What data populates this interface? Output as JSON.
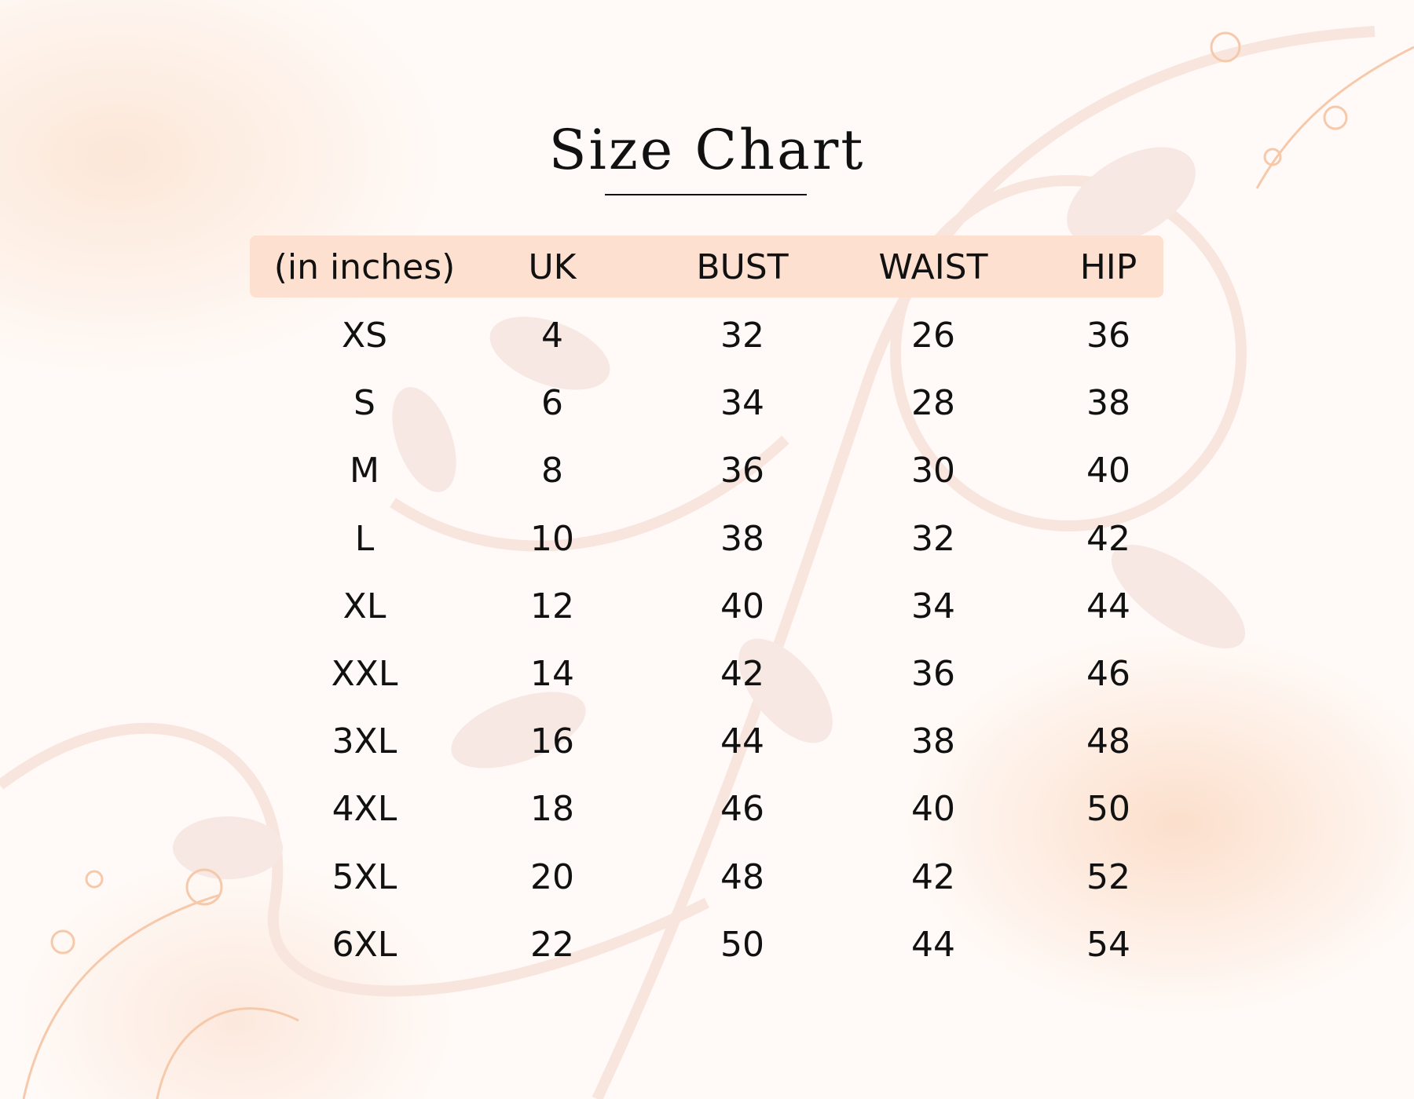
{
  "title": "Size Chart",
  "colors": {
    "header_bg": "#fde0cf",
    "background": "#fffaf7",
    "accent": "#f6c9ab"
  },
  "table": {
    "headers": [
      "(in inches)",
      "UK",
      "BUST",
      "WAIST",
      "HIP"
    ],
    "rows": [
      [
        "XS",
        "4",
        "32",
        "26",
        "36"
      ],
      [
        "S",
        "6",
        "34",
        "28",
        "38"
      ],
      [
        "M",
        "8",
        "36",
        "30",
        "40"
      ],
      [
        "L",
        "10",
        "38",
        "32",
        "42"
      ],
      [
        "XL",
        "12",
        "40",
        "34",
        "44"
      ],
      [
        "XXL",
        "14",
        "42",
        "36",
        "46"
      ],
      [
        "3XL",
        "16",
        "44",
        "38",
        "48"
      ],
      [
        "4XL",
        "18",
        "46",
        "40",
        "50"
      ],
      [
        "5XL",
        "20",
        "48",
        "42",
        "52"
      ],
      [
        "6XL",
        "22",
        "50",
        "44",
        "54"
      ]
    ]
  }
}
